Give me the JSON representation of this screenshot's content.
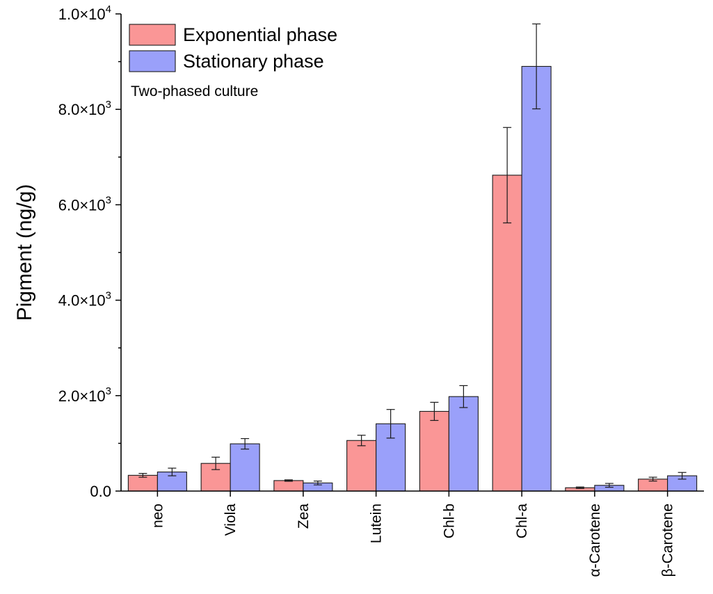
{
  "chart_data": {
    "type": "bar",
    "title": "",
    "xlabel": "",
    "ylabel": "Pigment (ng/g)",
    "ylim": [
      0,
      10000
    ],
    "yticks": [
      {
        "value": 0,
        "label": "0.0",
        "exp": ""
      },
      {
        "value": 2000,
        "label": "2.0×10",
        "exp": "3"
      },
      {
        "value": 4000,
        "label": "4.0×10",
        "exp": "3"
      },
      {
        "value": 6000,
        "label": "6.0×10",
        "exp": "3"
      },
      {
        "value": 8000,
        "label": "8.0×10",
        "exp": "3"
      },
      {
        "value": 10000,
        "label": "1.0×10",
        "exp": "4"
      }
    ],
    "categories": [
      "neo",
      "Viola",
      "Zea",
      "Lutein",
      "Chl-b",
      "Chl-a",
      "α-Carotene",
      "β-Carotene"
    ],
    "series": [
      {
        "name": "Exponential phase",
        "color": "#fa9696",
        "values": [
          330,
          580,
          220,
          1060,
          1670,
          6620,
          70,
          250
        ],
        "errors": [
          40,
          130,
          15,
          110,
          190,
          1000,
          15,
          40
        ]
      },
      {
        "name": "Stationary phase",
        "color": "#9aa0fa",
        "values": [
          400,
          990,
          170,
          1410,
          1980,
          8900,
          120,
          320
        ],
        "errors": [
          80,
          110,
          40,
          300,
          230,
          890,
          40,
          70
        ]
      }
    ],
    "grid": false,
    "legend_position": "top-left",
    "annotation": "Two-phased culture"
  }
}
